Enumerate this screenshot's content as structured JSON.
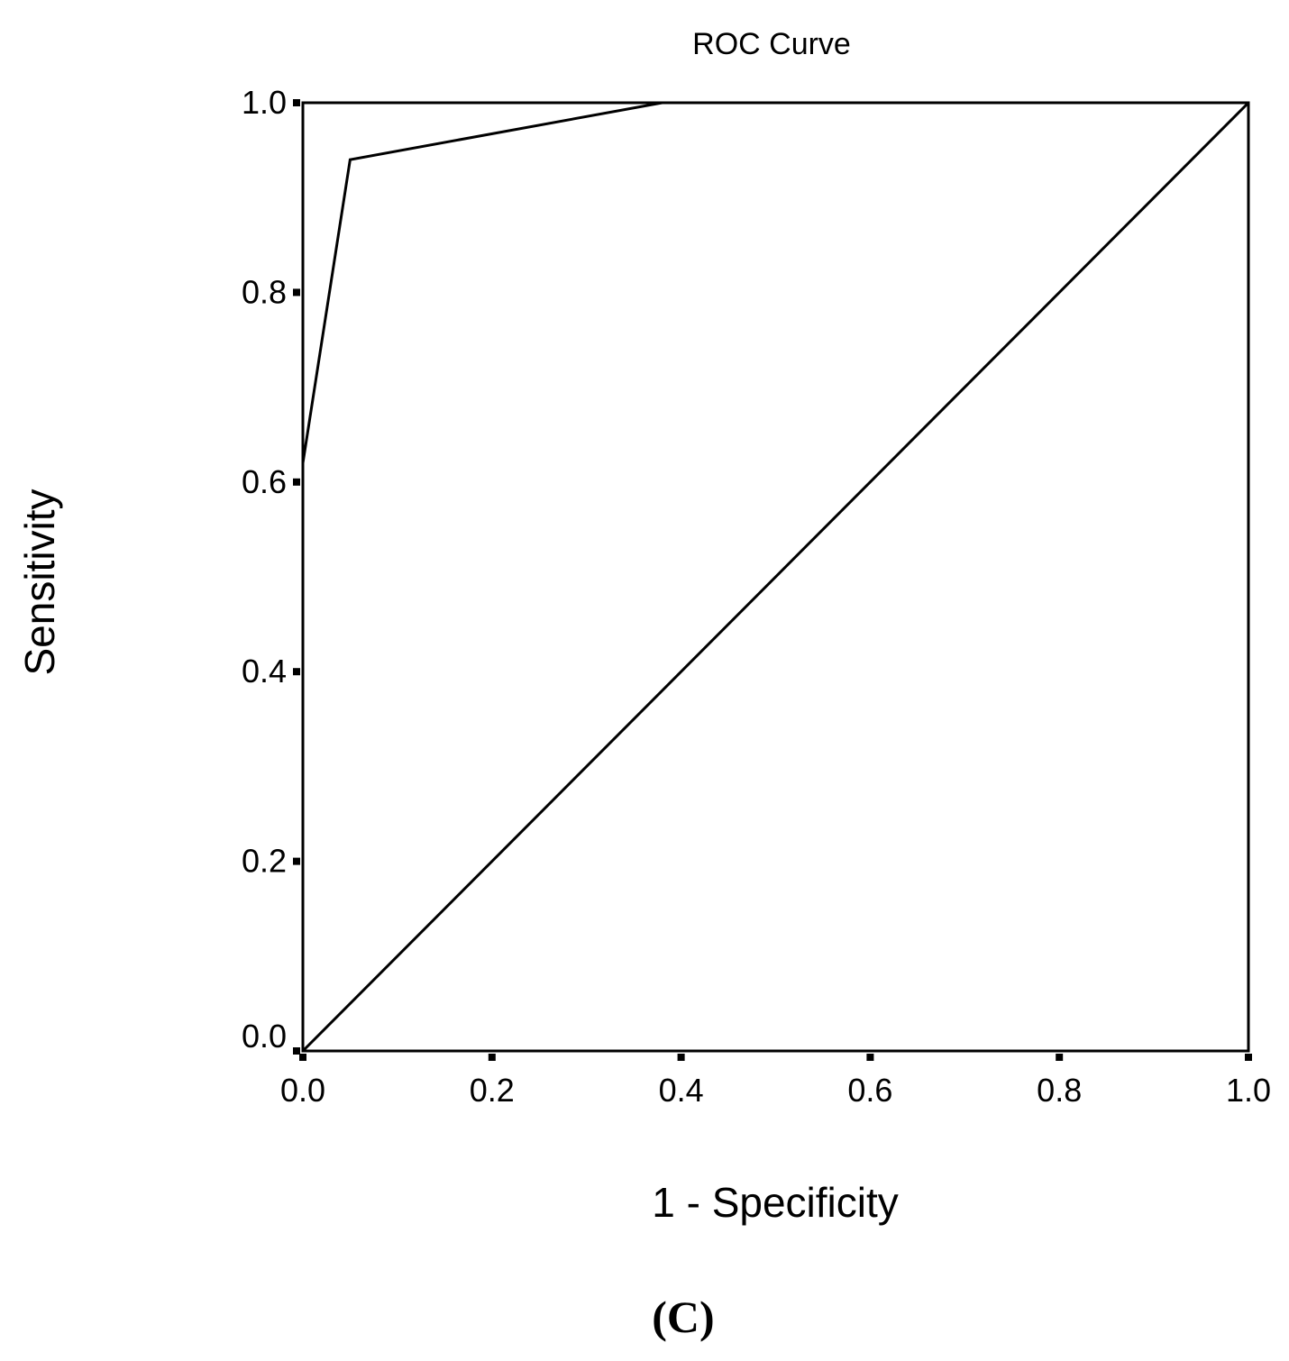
{
  "chart_data": {
    "type": "line",
    "title": "ROC Curve",
    "xlabel": "1 - Specificity",
    "ylabel": "Sensitivity",
    "xlim": [
      0.0,
      1.0
    ],
    "ylim": [
      0.0,
      1.0
    ],
    "x_ticks": [
      "0.0",
      "0.2",
      "0.4",
      "0.6",
      "0.8",
      "1.0"
    ],
    "y_ticks": [
      "0.0",
      "0.2",
      "0.4",
      "0.6",
      "0.8",
      "1.0"
    ],
    "grid": false,
    "series": [
      {
        "x": [
          0.0,
          0.0,
          0.05,
          0.38,
          1.0
        ],
        "y": [
          0.0,
          0.62,
          0.94,
          1.0,
          1.0
        ]
      },
      {
        "x": [
          0.0,
          1.0
        ],
        "y": [
          0.0,
          1.0
        ]
      }
    ]
  },
  "figure": {
    "panel_label": "(C)"
  }
}
